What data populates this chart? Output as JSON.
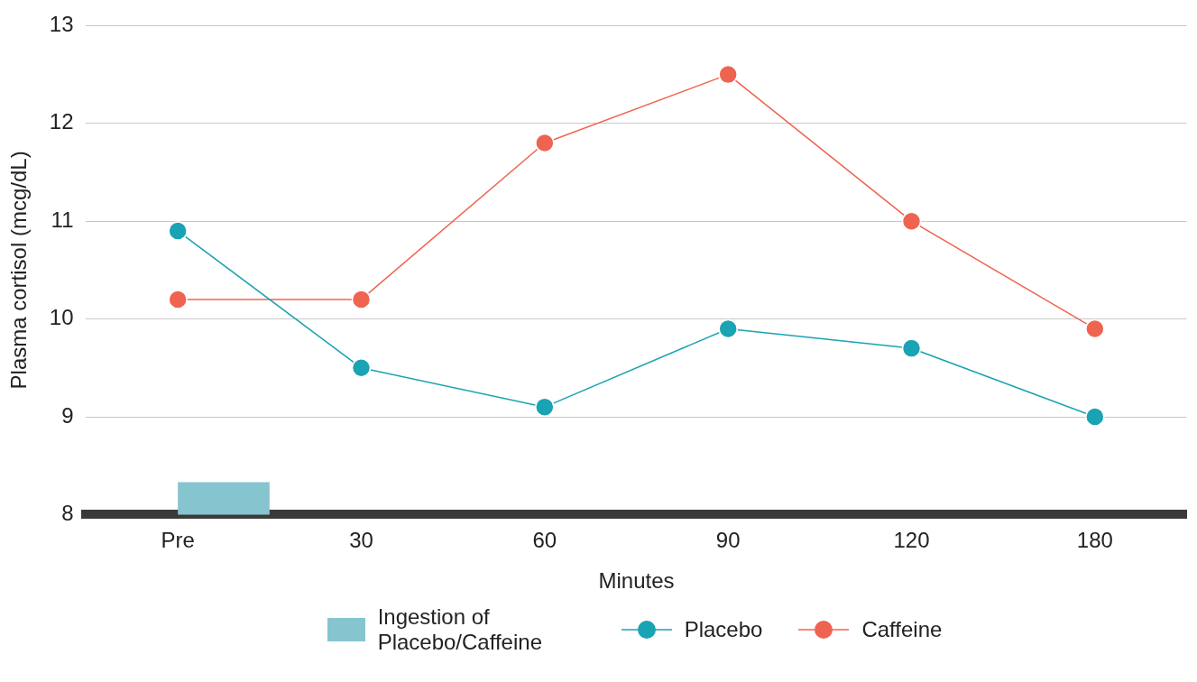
{
  "chart_data": {
    "type": "line",
    "xlabel": "Minutes",
    "ylabel": "Plasma cortisol (mcg/dL)",
    "categories": [
      "Pre",
      "30",
      "60",
      "90",
      "120",
      "180"
    ],
    "series": [
      {
        "name": "Placebo",
        "color": "#1aa3b2",
        "values": [
          10.9,
          9.5,
          9.1,
          9.9,
          9.7,
          9.0
        ]
      },
      {
        "name": "Caffeine",
        "color": "#ef6450",
        "values": [
          10.2,
          10.2,
          11.8,
          12.5,
          11.0,
          9.9
        ]
      }
    ],
    "bands": [
      {
        "axis": "x",
        "from": "Pre",
        "to": "30",
        "label": "Ingestion of Placebo/Caffeine",
        "color": "#86c4cf"
      }
    ],
    "ylim": [
      8,
      13
    ],
    "yticks": [
      8,
      9,
      10,
      11,
      12,
      13
    ],
    "grid": "y",
    "legend": "bottom",
    "marker": "circle",
    "line_style": "solid"
  }
}
